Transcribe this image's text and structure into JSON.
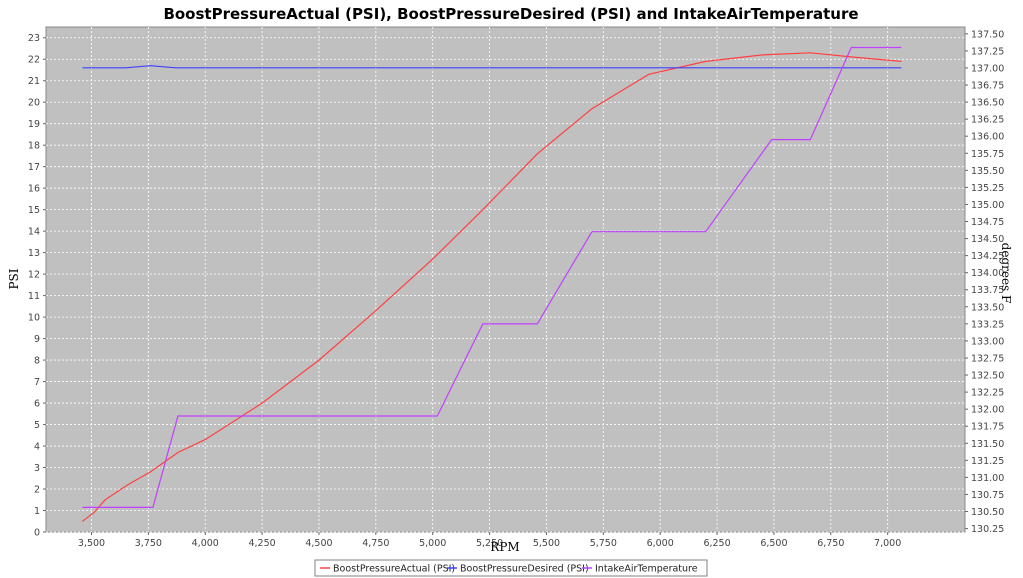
{
  "chart_data": {
    "type": "line",
    "title": "BoostPressureActual (PSI), BoostPressureDesired (PSI) and IntakeAirTemperature",
    "xlabel": "RPM",
    "ylabel": "PSI",
    "y2label": "degrees F",
    "xlim": [
      3300,
      7340
    ],
    "ylim": [
      0,
      23.5
    ],
    "y2lim": [
      130.2,
      137.6
    ],
    "x_ticks": [
      3500,
      3750,
      4000,
      4250,
      4500,
      4750,
      5000,
      5250,
      5500,
      5750,
      6000,
      6250,
      6500,
      6750,
      7000
    ],
    "x_tick_labels": [
      "3,500",
      "3,750",
      "4,000",
      "4,250",
      "4,500",
      "4,750",
      "5,000",
      "5,250",
      "5,500",
      "5,750",
      "6,000",
      "6,250",
      "6,500",
      "6,750",
      "7,000"
    ],
    "y_ticks": [
      0,
      1,
      2,
      3,
      4,
      5,
      6,
      7,
      8,
      9,
      10,
      11,
      12,
      13,
      14,
      15,
      16,
      17,
      18,
      19,
      20,
      21,
      22,
      23
    ],
    "y2_ticks": [
      130.25,
      130.5,
      130.75,
      131.0,
      131.25,
      131.5,
      131.75,
      132.0,
      132.25,
      132.5,
      132.75,
      133.0,
      133.25,
      133.5,
      133.75,
      134.0,
      134.25,
      134.5,
      134.75,
      135.0,
      135.25,
      135.5,
      135.75,
      136.0,
      136.25,
      136.5,
      136.75,
      137.0,
      137.25,
      137.5
    ],
    "y2_tick_labels": [
      "130.25",
      "130.50",
      "130.75",
      "131.00",
      "131.25",
      "131.50",
      "131.75",
      "132.00",
      "132.25",
      "132.50",
      "132.75",
      "133.00",
      "133.25",
      "133.50",
      "133.75",
      "134.00",
      "134.25",
      "134.50",
      "134.75",
      "135.00",
      "135.25",
      "135.50",
      "135.75",
      "136.00",
      "136.25",
      "136.50",
      "136.75",
      "137.00",
      "137.25",
      "137.50"
    ],
    "grid": true,
    "legend_position": "bottom-center",
    "background": "#c0c0c0",
    "series": [
      {
        "name": "BoostPressureActual (PSI)",
        "color": "#ff4040",
        "axis": "left",
        "x": [
          3460,
          3510,
          3560,
          3660,
          3760,
          3880,
          4000,
          4250,
          4500,
          4750,
          5000,
          5220,
          5460,
          5700,
          5950,
          6200,
          6450,
          6660,
          6850,
          7060
        ],
        "y": [
          0.5,
          0.9,
          1.5,
          2.2,
          2.8,
          3.7,
          4.3,
          6.0,
          8.0,
          10.3,
          12.7,
          15.0,
          17.6,
          19.7,
          21.3,
          21.9,
          22.2,
          22.3,
          22.1,
          21.9
        ]
      },
      {
        "name": "BoostPressureDesired (PSI)",
        "color": "#4040ff",
        "axis": "left",
        "x": [
          3460,
          3650,
          3760,
          3870,
          7060
        ],
        "y": [
          21.6,
          21.6,
          21.7,
          21.6,
          21.6
        ]
      },
      {
        "name": "IntakeAirTemperature",
        "color": "#c040ff",
        "axis": "right",
        "x": [
          3460,
          3770,
          3880,
          5020,
          5220,
          5460,
          5700,
          6200,
          6490,
          6660,
          6840,
          7060
        ],
        "y": [
          130.56,
          130.56,
          131.9,
          131.9,
          133.25,
          133.25,
          134.6,
          134.6,
          135.95,
          135.95,
          137.3,
          137.3
        ]
      }
    ]
  }
}
